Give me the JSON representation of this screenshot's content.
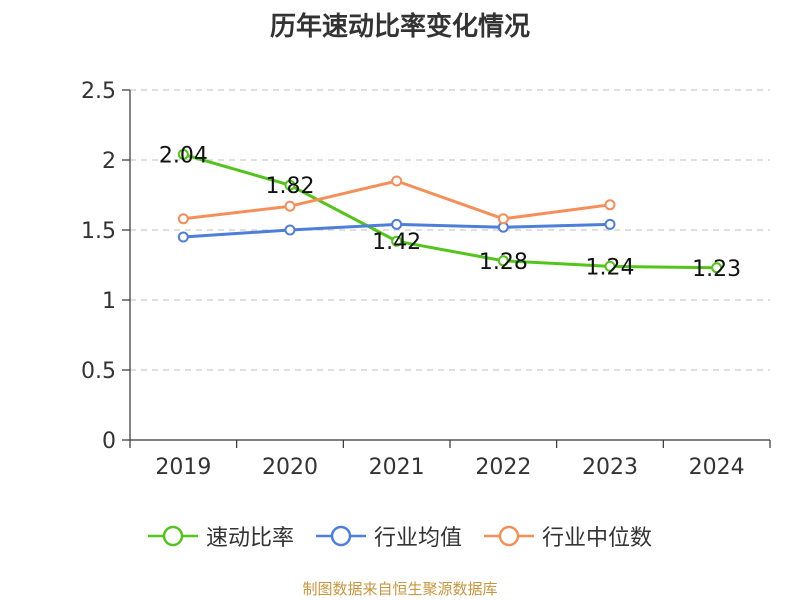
{
  "chart_data": {
    "type": "line",
    "title": "历年速动比率变化情况",
    "categories": [
      "2019",
      "2020",
      "2021",
      "2022",
      "2023",
      "2024"
    ],
    "ylim": [
      0,
      2.5
    ],
    "yticks": [
      "0",
      "0.5",
      "1",
      "1.5",
      "2",
      "2.5"
    ],
    "grid": true,
    "legend_position": "bottom",
    "series": [
      {
        "name": "速动比率",
        "color": "#52c41a",
        "values": [
          2.04,
          1.82,
          1.42,
          1.28,
          1.24,
          1.23
        ],
        "labels": [
          "2.04",
          "1.82",
          "1.42",
          "1.28",
          "1.24",
          "1.23"
        ]
      },
      {
        "name": "行业均值",
        "color": "#4e7fd8",
        "values": [
          1.45,
          1.5,
          1.54,
          1.52,
          1.54,
          null
        ]
      },
      {
        "name": "行业中位数",
        "color": "#f58f5a",
        "values": [
          1.58,
          1.67,
          1.85,
          1.58,
          1.68,
          null
        ]
      }
    ],
    "source": "制图数据来自恒生聚源数据库"
  }
}
